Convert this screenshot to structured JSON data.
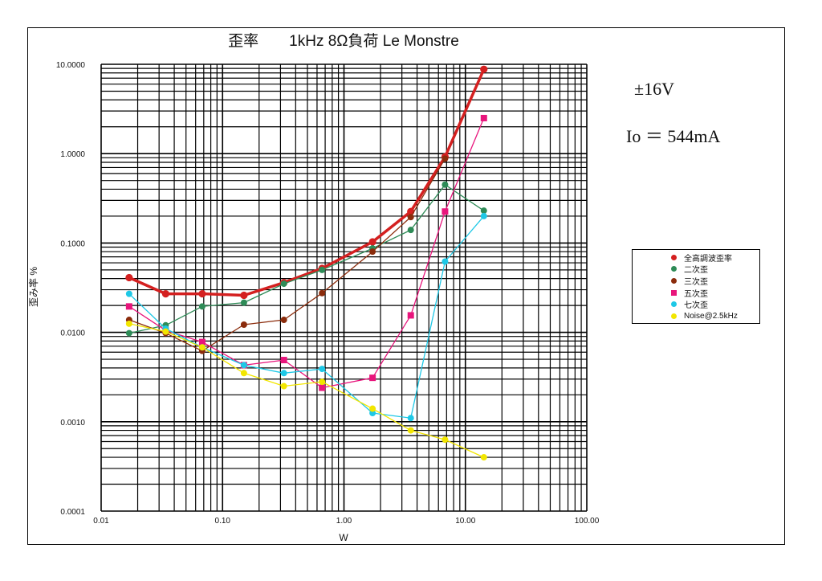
{
  "chart_data": {
    "type": "line",
    "title": "歪率　　1kHz 8Ω負荷  Le  Monstre",
    "xlabel": "W",
    "ylabel": "歪み率 %",
    "x_scale": "log",
    "y_scale": "log",
    "xlim": [
      0.01,
      100
    ],
    "ylim": [
      0.0001,
      10
    ],
    "x_ticks": [
      {
        "value": 0.01,
        "label": "0.01"
      },
      {
        "value": 0.1,
        "label": "0.10"
      },
      {
        "value": 1,
        "label": "1.00"
      },
      {
        "value": 10,
        "label": "10.00"
      },
      {
        "value": 100,
        "label": "100.00"
      }
    ],
    "y_ticks": [
      {
        "value": 0.0001,
        "label": "0.0001"
      },
      {
        "value": 0.001,
        "label": "0.0010"
      },
      {
        "value": 0.01,
        "label": "0.0100"
      },
      {
        "value": 0.1,
        "label": "0.1000"
      },
      {
        "value": 1,
        "label": "1.0000"
      },
      {
        "value": 10,
        "label": "10.0000"
      }
    ],
    "grid": true,
    "legend_position": "right",
    "annotations": [
      "±16V",
      "Io ＝ 544mA"
    ],
    "series": [
      {
        "name": "全高調波歪率",
        "color": "#d42020",
        "marker": "circle",
        "width": 3.5,
        "x": [
          0.017,
          0.034,
          0.068,
          0.15,
          0.32,
          0.66,
          1.72,
          3.55,
          6.8,
          14.2
        ],
        "y": [
          0.041,
          0.027,
          0.027,
          0.026,
          0.036,
          0.052,
          0.103,
          0.225,
          0.92,
          8.8
        ]
      },
      {
        "name": "二次歪",
        "color": "#2e8b57",
        "marker": "circle",
        "width": 1.3,
        "x": [
          0.017,
          0.034,
          0.068,
          0.15,
          0.32,
          0.66,
          1.72,
          3.55,
          6.8,
          14.2
        ],
        "y": [
          0.0098,
          0.012,
          0.0195,
          0.0215,
          0.035,
          0.05,
          0.087,
          0.14,
          0.45,
          0.23
        ]
      },
      {
        "name": "三次歪",
        "color": "#8b2c0c",
        "marker": "circle",
        "width": 1.3,
        "x": [
          0.017,
          0.034,
          0.068,
          0.15,
          0.32,
          0.66,
          1.72,
          3.55,
          6.8
        ],
        "y": [
          0.0138,
          0.0098,
          0.0062,
          0.0122,
          0.0138,
          0.0275,
          0.08,
          0.195,
          0.88
        ]
      },
      {
        "name": "五次歪",
        "color": "#e8157c",
        "marker": "square",
        "width": 1.3,
        "x": [
          0.017,
          0.034,
          0.068,
          0.15,
          0.32,
          0.66,
          1.72,
          3.55,
          6.8,
          14.2
        ],
        "y": [
          0.0195,
          0.0105,
          0.0078,
          0.0043,
          0.0049,
          0.0024,
          0.0031,
          0.0155,
          0.225,
          2.5
        ]
      },
      {
        "name": "七次歪",
        "color": "#1ec8e6",
        "marker": "circle",
        "width": 1.3,
        "x": [
          0.017,
          0.034,
          0.068,
          0.15,
          0.32,
          0.66,
          1.72,
          3.55,
          6.8,
          14.2
        ],
        "y": [
          0.027,
          0.011,
          0.0068,
          0.0043,
          0.0035,
          0.0039,
          0.00125,
          0.0011,
          0.062,
          0.2
        ]
      },
      {
        "name": "Noise@2.5kHz",
        "color": "#f2e600",
        "marker": "circle",
        "width": 1.3,
        "x": [
          0.017,
          0.034,
          0.068,
          0.15,
          0.32,
          0.66,
          1.72,
          3.55,
          6.8,
          14.2
        ],
        "y": [
          0.0125,
          0.0102,
          0.0068,
          0.0035,
          0.0025,
          0.0028,
          0.0014,
          0.0008,
          0.00063,
          0.0004
        ]
      }
    ]
  }
}
